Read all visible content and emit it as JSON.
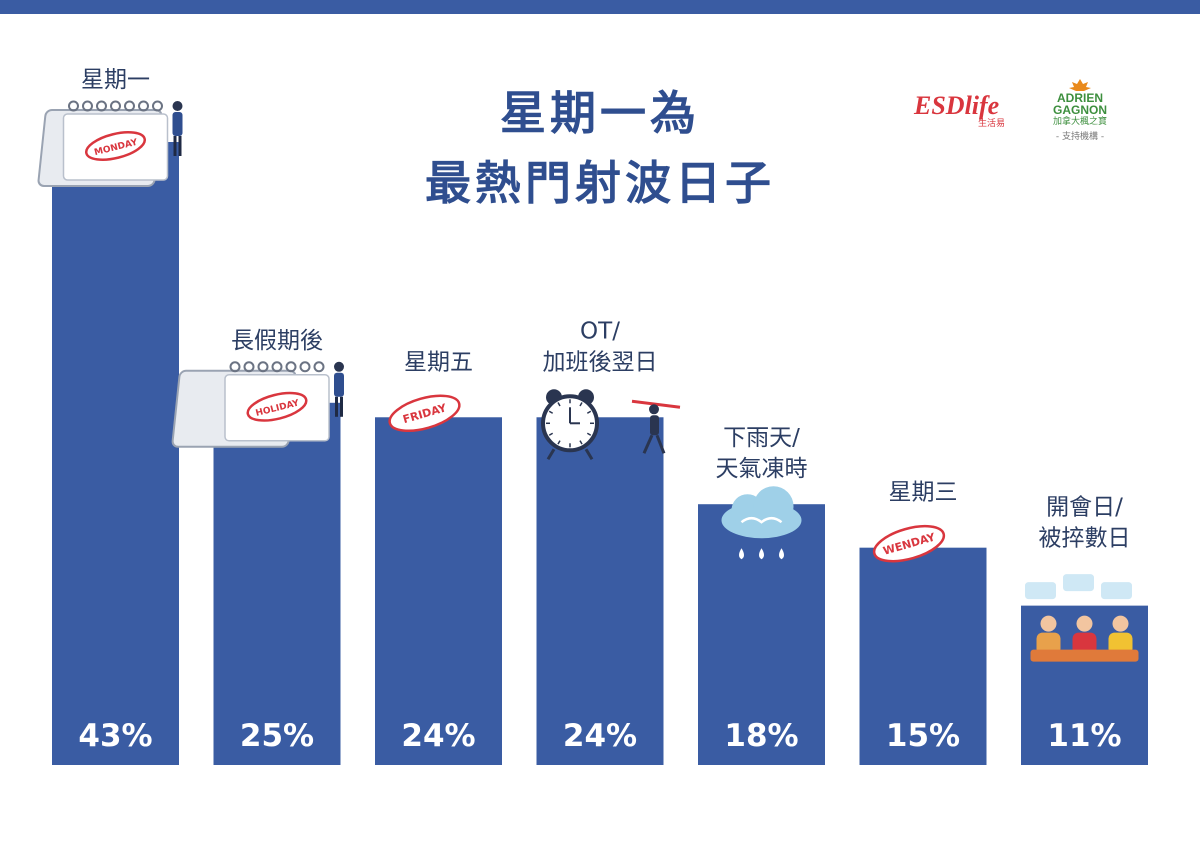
{
  "title": {
    "line1": "星期一為",
    "line2": "最熱門射波日子"
  },
  "sponsors": {
    "esd": "ESDlife",
    "esd_sub": "生活易",
    "adrien_line1": "ADRIEN",
    "adrien_line2": "GAGNON",
    "adrien_sub": "加拿大楓之寶",
    "support_note": "- 支持機構 -"
  },
  "chart_data": {
    "type": "bar",
    "categories": [
      [
        "星期一"
      ],
      [
        "長假期後"
      ],
      [
        "星期五"
      ],
      [
        "OT/",
        "加班後翌日"
      ],
      [
        "下雨天/",
        "天氣凍時"
      ],
      [
        "星期三"
      ],
      [
        "開會日/",
        "被捽數日"
      ]
    ],
    "values": [
      43,
      25,
      24,
      24,
      18,
      15,
      11
    ],
    "value_labels": [
      "43%",
      "25%",
      "24%",
      "24%",
      "18%",
      "15%",
      "11%"
    ],
    "ylim": [
      0,
      43
    ],
    "grid": false,
    "bar_color": "#3a5ca3",
    "illustrations": [
      "calendar",
      "calendar",
      "stamp",
      "alarm-clock",
      "cloud",
      "stamp",
      "meeting"
    ],
    "illustration_text": [
      "MONDAY",
      "HOLIDAY",
      "FRIDAY",
      "",
      "",
      "WENDAY",
      ""
    ]
  },
  "colors": {
    "accent": "#3a5ca3",
    "title": "#2f4e8f",
    "stamp": "#d9363e"
  }
}
